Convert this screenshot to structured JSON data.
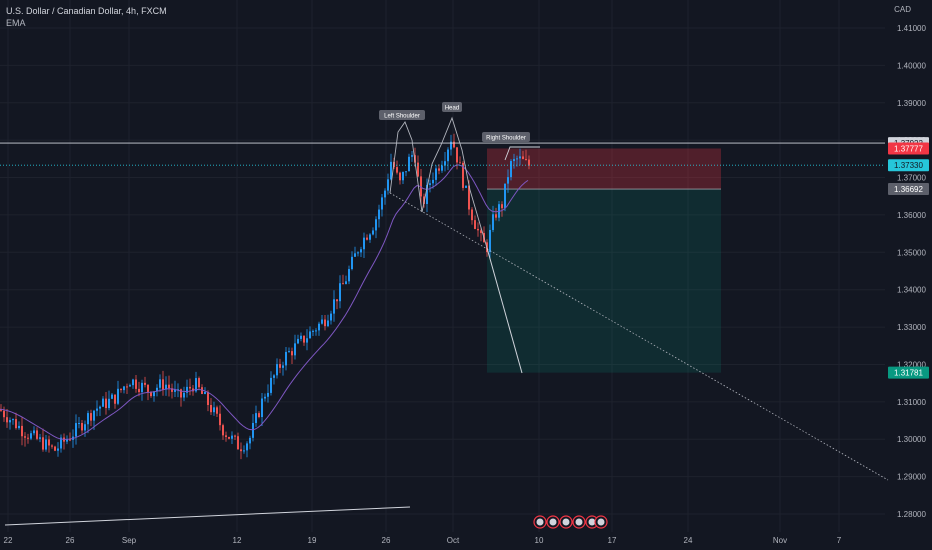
{
  "header": {
    "symbol_line": "U.S. Dollar / Canadian Dollar, 4h, FXCM",
    "indicator": "EMA",
    "currency": "CAD"
  },
  "colors": {
    "background": "#131722",
    "up": "#26a69a",
    "up_bright": "#2196f3",
    "down": "#ef5350",
    "ema": "#7e57c2",
    "stop_zone": "rgba(242,54,69,0.28)",
    "target_zone": "rgba(8,153,129,0.16)",
    "current_price_line": "#26c6da"
  },
  "chart_data": {
    "type": "candlestick",
    "ylim": [
      1.275,
      1.415
    ],
    "y_ticks": [
      "1.41000",
      "1.40000",
      "1.39000",
      "1.38000",
      "1.37000",
      "1.36000",
      "1.35000",
      "1.34000",
      "1.33000",
      "1.32000",
      "1.31000",
      "1.30000",
      "1.29000",
      "1.28000"
    ],
    "x_ticks": [
      "22",
      "26",
      "Sep",
      "12",
      "19",
      "26",
      "Oct",
      "10",
      "17",
      "24",
      "Nov",
      "7"
    ],
    "price_tags": [
      {
        "label": "1.37922",
        "value": 1.37922,
        "bg": "#d1d4dc",
        "fg": "#131722"
      },
      {
        "label": "1.37777",
        "value": 1.37777,
        "bg": "#f23645",
        "fg": "#ffffff"
      },
      {
        "label": "1.37330",
        "value": 1.3733,
        "bg": "#26c6da",
        "fg": "#131722"
      },
      {
        "label": "1.36692",
        "value": 1.36692,
        "bg": "#5d606b",
        "fg": "#ffffff"
      },
      {
        "label": "1.31781",
        "value": 1.31781,
        "bg": "#089981",
        "fg": "#ffffff"
      }
    ],
    "annotations": [
      {
        "text": "Left Shoulder"
      },
      {
        "text": "Head"
      },
      {
        "text": "Right Shoulder"
      }
    ],
    "horizontal_line": 1.37922,
    "current_price": 1.3733,
    "position": {
      "entry": 1.36692,
      "stop": 1.37777,
      "target": 1.31781
    }
  }
}
